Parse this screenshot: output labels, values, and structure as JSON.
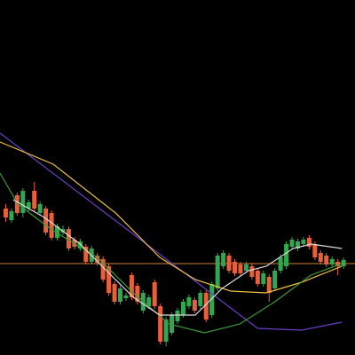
{
  "chart_data": {
    "type": "candlestick",
    "xlim": [
      -1,
      61
    ],
    "ylim": [
      0,
      400
    ],
    "up_color": "#2fa84f",
    "down_color": "#e8603a",
    "open": [
      165,
      152,
      180,
      160,
      165,
      185,
      160,
      165,
      160,
      132,
      138,
      142,
      130,
      120,
      122,
      105,
      112,
      108,
      100,
      80,
      60,
      64,
      90,
      78,
      50,
      55,
      82,
      55,
      15,
      25,
      38,
      45,
      55,
      62,
      55,
      70,
      45,
      75,
      100,
      112,
      105,
      102,
      95,
      100,
      95,
      80,
      88,
      75,
      95,
      100,
      122,
      120,
      125,
      132,
      125,
      115,
      112,
      102,
      105,
      100
    ],
    "high": [
      170,
      165,
      183,
      188,
      175,
      195,
      173,
      168,
      163,
      148,
      146,
      145,
      133,
      131,
      125,
      123,
      115,
      111,
      103,
      83,
      78,
      70,
      93,
      81,
      73,
      68,
      85,
      58,
      43,
      48,
      53,
      63,
      68,
      65,
      73,
      73,
      83,
      115,
      118,
      115,
      108,
      105,
      105,
      103,
      98,
      95,
      91,
      98,
      113,
      128,
      133,
      131,
      133,
      135,
      128,
      118,
      115,
      111,
      108,
      110
    ],
    "low": [
      150,
      149,
      157,
      155,
      162,
      162,
      157,
      135,
      129,
      129,
      135,
      117,
      119,
      117,
      102,
      102,
      101,
      82,
      67,
      57,
      57,
      61,
      62,
      57,
      47,
      52,
      52,
      12,
      10,
      22,
      35,
      42,
      52,
      47,
      52,
      37,
      42,
      72,
      97,
      92,
      89,
      89,
      92,
      85,
      77,
      77,
      60,
      72,
      92,
      97,
      119,
      117,
      122,
      119,
      107,
      102,
      99,
      99,
      90,
      97
    ],
    "close": [
      155,
      162,
      160,
      185,
      172,
      165,
      170,
      138,
      132,
      145,
      142,
      120,
      122,
      128,
      105,
      120,
      104,
      85,
      70,
      60,
      75,
      67,
      65,
      60,
      70,
      65,
      55,
      15,
      40,
      45,
      50,
      60,
      65,
      50,
      70,
      40,
      80,
      112,
      115,
      95,
      92,
      92,
      102,
      88,
      80,
      92,
      70,
      95,
      110,
      125,
      130,
      128,
      130,
      122,
      110,
      105,
      102,
      108,
      100,
      107
    ],
    "hline": {
      "value": 103,
      "color": "#d0803c"
    },
    "series": [
      {
        "color": "#6a3fc4",
        "x": [
          -1,
          44,
          51.7,
          58.7
        ],
        "values": [
          250,
          30,
          28,
          37
        ]
      },
      {
        "color": "#f0c040",
        "x": [
          -1,
          8.3,
          19.2,
          26.9,
          33.1,
          39.3,
          45.5,
          51.7,
          58.7
        ],
        "values": [
          240,
          215,
          160,
          110,
          85,
          72,
          70,
          82,
          100
        ]
      },
      {
        "color": "#3a9a3a",
        "x": [
          -1,
          2.1,
          8.3,
          16,
          22.3,
          28.5,
          34.7,
          40.9,
          47,
          53.3,
          58.7
        ],
        "values": [
          205,
          170,
          140,
          110,
          70,
          35,
          25,
          35,
          60,
          90,
          103
        ]
      },
      {
        "color": "#dddddd",
        "x": [
          1.3,
          6.75,
          13,
          17.6,
          22.3,
          26.9,
          33.1,
          37.8,
          42.4,
          45.5,
          50.2,
          53.3,
          58.7
        ],
        "values": [
          175,
          155,
          125,
          95,
          65,
          45,
          45,
          75,
          95,
          100,
          120,
          125,
          120
        ]
      }
    ]
  }
}
